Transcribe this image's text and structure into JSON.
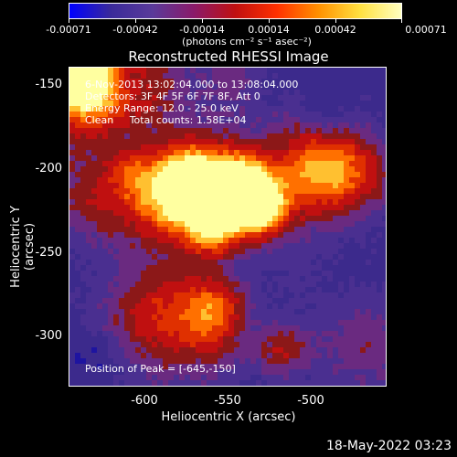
{
  "colorbar": {
    "ticks": [
      "-0.00071",
      "-0.00042",
      "-0.00014",
      "0.00014",
      "0.00042",
      "0.00071"
    ],
    "units": "(photons cm⁻² s⁻¹ asec⁻²)",
    "colors": [
      "#0000ff",
      "#3a2a9a",
      "#5a3a9a",
      "#8a1a6a",
      "#c01010",
      "#ff3000",
      "#ff9000",
      "#ffe040",
      "#ffffc0"
    ]
  },
  "title": "Reconstructed RHESSI Image",
  "info": {
    "time_range": "6-Nov-2013 13:02:04.000 to 13:08:04.000",
    "detectors": "Detectors: 3F 4F 5F 6F 7F 8F, Att 0",
    "energy": "Energy Range: 12.0 - 25.0 keV",
    "clean": "Clean     Total counts: 1.58E+04"
  },
  "peak": "Position of Peak = [-645,-150]",
  "axes": {
    "ylabel": "Heliocentric Y (arcsec)",
    "xlabel": "Heliocentric X (arcsec)",
    "yticks": [
      "-150",
      "-200",
      "-250",
      "-300"
    ],
    "xticks": [
      "-600",
      "-550",
      "-500"
    ]
  },
  "datestamp": "18-May-2022 03:23"
}
